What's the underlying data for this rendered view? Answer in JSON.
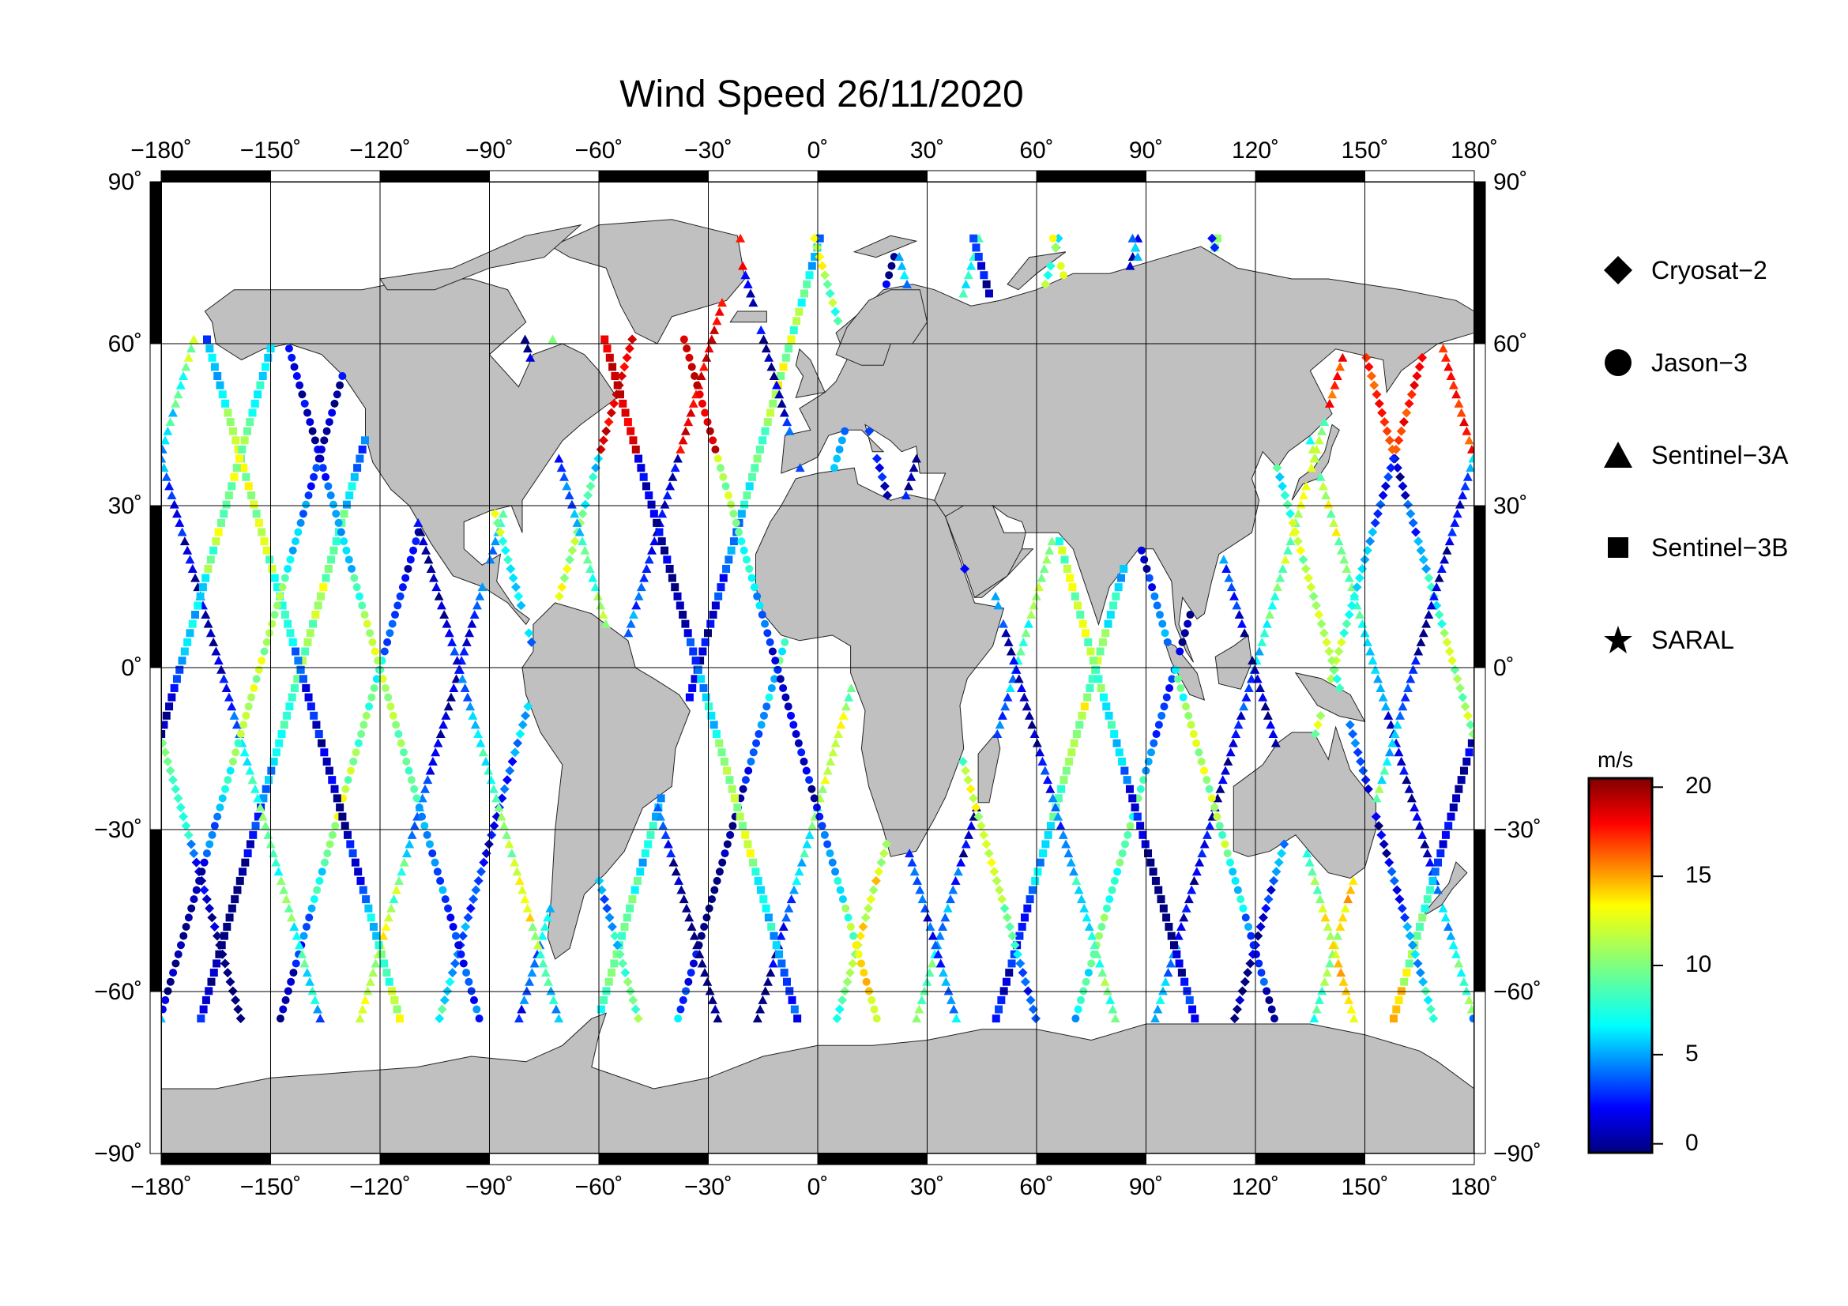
{
  "title": "Wind Speed 26/11/2020",
  "map": {
    "lon_ticks": [
      "−180˚",
      "−150˚",
      "−120˚",
      "−90˚",
      "−60˚",
      "−30˚",
      "0˚",
      "30˚",
      "60˚",
      "90˚",
      "120˚",
      "150˚",
      "180˚"
    ],
    "lat_ticks_left": [
      "90˚",
      "60˚",
      "30˚",
      "0˚",
      "−30˚",
      "−60˚",
      "−90˚"
    ],
    "lat_ticks_right": [
      "90˚",
      "60˚",
      "30˚",
      "0˚",
      "−30˚",
      "−60˚",
      "−90˚"
    ],
    "projection": "equirectangular",
    "land_color": "#c0c0c0",
    "ocean_color": "#ffffff"
  },
  "legend": {
    "items": [
      {
        "label": "Cryosat−2",
        "marker": "diamond-icon"
      },
      {
        "label": "Jason−3",
        "marker": "circle-icon"
      },
      {
        "label": "Sentinel−3A",
        "marker": "triangle-icon"
      },
      {
        "label": "Sentinel−3B",
        "marker": "square-icon"
      },
      {
        "label": "SARAL",
        "marker": "star-icon"
      }
    ]
  },
  "colorbar": {
    "unit": "m/s",
    "ticks": [
      "20",
      "15",
      "10",
      "5",
      "0"
    ],
    "range": [
      -0.5,
      20.5
    ],
    "colormap": "jet"
  }
}
